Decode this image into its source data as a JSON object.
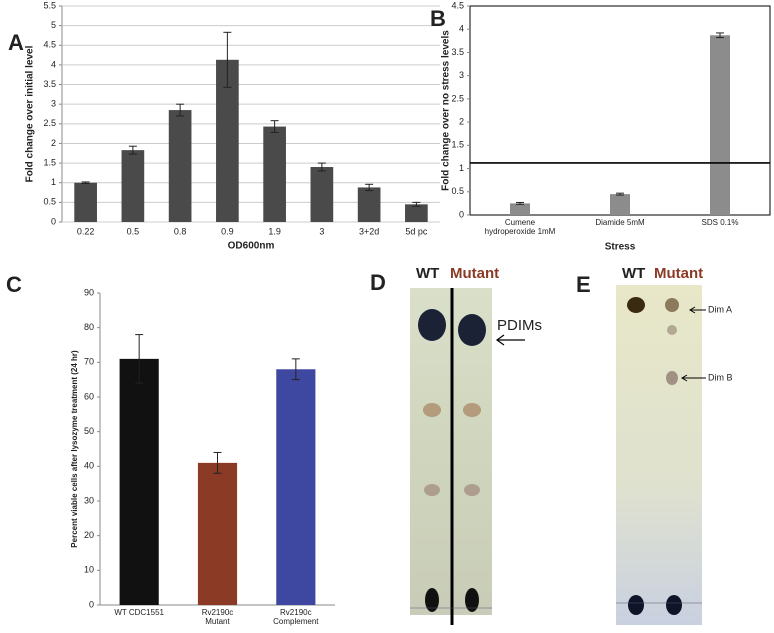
{
  "chart_data": [
    {
      "type": "bar",
      "panel": "A",
      "ylabel": "Fold change over initial level",
      "xlabel": "OD600nm",
      "categories": [
        "0.22",
        "0.5",
        "0.8",
        "0.9",
        "1.9",
        "3",
        "3+2d",
        "5d pc"
      ],
      "values": [
        1,
        1.83,
        2.85,
        4.13,
        2.43,
        1.4,
        0.88,
        0.45
      ],
      "errors": [
        0.02,
        0.1,
        0.15,
        0.7,
        0.15,
        0.1,
        0.08,
        0.05
      ],
      "color": "#4a4a4a",
      "ylim": [
        0,
        5.5
      ],
      "yticks": [
        0,
        0.5,
        1,
        1.5,
        2,
        2.5,
        3,
        3.5,
        4,
        4.5,
        5,
        5.5
      ],
      "grid": true
    },
    {
      "type": "bar",
      "panel": "B",
      "ylabel": "Fold change over no stress levels",
      "xlabel": "Stress",
      "categories": [
        "Cumene hydroperoxide 1mM",
        "Diamide 5mM",
        "SDS 0.1%"
      ],
      "values": [
        0.25,
        0.45,
        3.87
      ],
      "errors": [
        0.02,
        0.02,
        0.05
      ],
      "color": "#8c8c8c",
      "reference_line": 1.12,
      "ylim": [
        0,
        4.5
      ],
      "yticks": [
        0,
        0.5,
        1,
        1.5,
        2,
        2.5,
        3,
        3.5,
        4,
        4.5
      ],
      "grid": false
    },
    {
      "type": "bar",
      "panel": "C",
      "ylabel": "Percent viable cells after lysozyme treatment (24 hr)",
      "categories": [
        "WT CDC1551",
        "Rv2190c Mutant",
        "Rv2190c Complement"
      ],
      "values": [
        71,
        41,
        68
      ],
      "errors": [
        7,
        3,
        3
      ],
      "colors": [
        "#111111",
        "#8b3a26",
        "#3f48a0"
      ],
      "ylim": [
        0,
        90
      ],
      "yticks": [
        0,
        10,
        20,
        30,
        40,
        50,
        60,
        70,
        80,
        90
      ],
      "grid": false
    }
  ],
  "plates": [
    {
      "panel": "D",
      "lanes": [
        "WT",
        "Mutant"
      ],
      "annotations": [
        "PDIMs"
      ]
    },
    {
      "panel": "E",
      "lanes": [
        "WT",
        "Mutant"
      ],
      "annotations": [
        "Dim A",
        "Dim B"
      ]
    }
  ]
}
